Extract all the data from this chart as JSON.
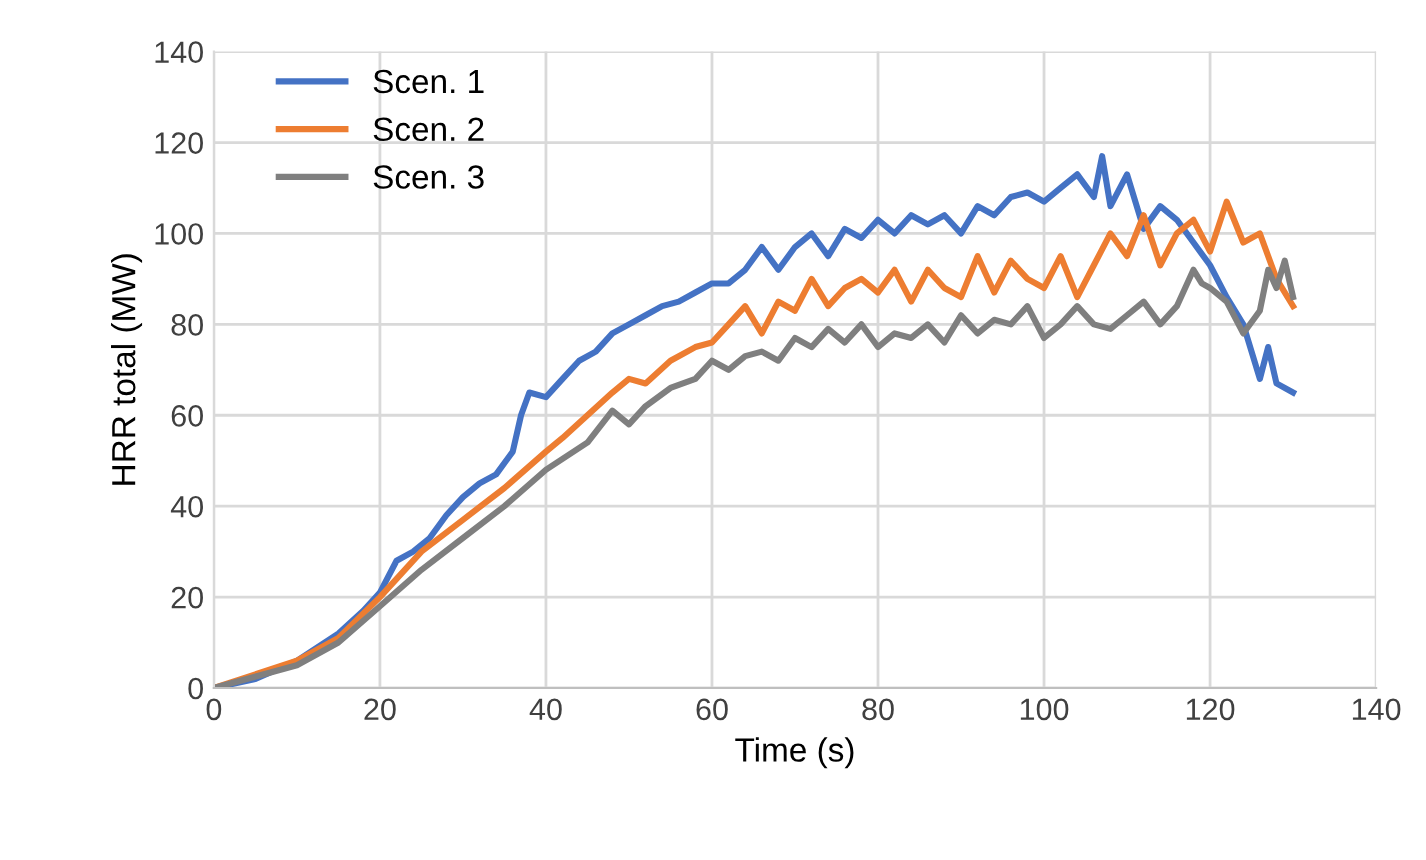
{
  "chart_data": {
    "type": "line",
    "xlabel": "Time (s)",
    "ylabel": "HRR total (MW)",
    "xlim": [
      0,
      140
    ],
    "xticks": [
      0,
      20,
      40,
      60,
      80,
      100,
      120,
      140
    ],
    "ylim": [
      0,
      140
    ],
    "yticks": [
      0,
      20,
      40,
      60,
      80,
      100,
      120,
      140
    ],
    "grid": true,
    "legend": "top left",
    "line_style": "solid",
    "series": [
      {
        "name": "Scen. 1",
        "color": "#4472c4",
        "x": [
          0,
          5,
          10,
          15,
          18,
          20,
          22,
          24,
          26,
          28,
          30,
          32,
          34,
          36,
          37,
          38,
          40,
          42,
          44,
          46,
          48,
          50,
          52,
          54,
          56,
          58,
          60,
          62,
          64,
          66,
          68,
          70,
          72,
          74,
          76,
          78,
          80,
          82,
          84,
          86,
          88,
          90,
          92,
          94,
          96,
          98,
          100,
          102,
          104,
          106,
          107,
          108,
          110,
          112,
          114,
          116,
          118,
          120,
          122,
          124,
          126,
          127,
          128,
          130
        ],
        "values": [
          0,
          2,
          6,
          12,
          17,
          21,
          28,
          30,
          33,
          38,
          42,
          45,
          47,
          52,
          60,
          65,
          64,
          68,
          72,
          74,
          78,
          80,
          82,
          84,
          85,
          87,
          89,
          89,
          92,
          97,
          92,
          97,
          100,
          95,
          101,
          99,
          103,
          100,
          104,
          102,
          104,
          100,
          106,
          104,
          108,
          109,
          107,
          110,
          113,
          108,
          117,
          106,
          113,
          101,
          106,
          103,
          98,
          93,
          86,
          80,
          68,
          75,
          67,
          65
        ]
      },
      {
        "name": "Scen. 2",
        "color": "#ed7d31",
        "x": [
          0,
          10,
          15,
          20,
          25,
          30,
          35,
          40,
          42,
          45,
          48,
          50,
          52,
          55,
          58,
          60,
          62,
          64,
          66,
          68,
          70,
          72,
          74,
          76,
          78,
          80,
          82,
          84,
          86,
          88,
          90,
          92,
          94,
          96,
          98,
          100,
          102,
          104,
          106,
          108,
          110,
          112,
          114,
          116,
          118,
          120,
          122,
          124,
          126,
          128,
          130
        ],
        "values": [
          0,
          6,
          11,
          20,
          30,
          37,
          44,
          52,
          55,
          60,
          65,
          68,
          67,
          72,
          75,
          76,
          80,
          84,
          78,
          85,
          83,
          90,
          84,
          88,
          90,
          87,
          92,
          85,
          92,
          88,
          86,
          95,
          87,
          94,
          90,
          88,
          95,
          86,
          93,
          100,
          95,
          104,
          93,
          100,
          103,
          96,
          107,
          98,
          100,
          90,
          84
        ]
      },
      {
        "name": "Scen. 3",
        "color": "#7f7f7f",
        "x": [
          0,
          10,
          15,
          20,
          25,
          30,
          35,
          40,
          45,
          48,
          50,
          52,
          55,
          58,
          60,
          62,
          64,
          66,
          68,
          70,
          72,
          74,
          76,
          78,
          80,
          82,
          84,
          86,
          88,
          90,
          92,
          94,
          96,
          98,
          100,
          102,
          104,
          106,
          108,
          110,
          112,
          114,
          116,
          118,
          119,
          120,
          122,
          124,
          126,
          127,
          128,
          129,
          130
        ],
        "values": [
          0,
          5,
          10,
          18,
          26,
          33,
          40,
          48,
          54,
          61,
          58,
          62,
          66,
          68,
          72,
          70,
          73,
          74,
          72,
          77,
          75,
          79,
          76,
          80,
          75,
          78,
          77,
          80,
          76,
          82,
          78,
          81,
          80,
          84,
          77,
          80,
          84,
          80,
          79,
          82,
          85,
          80,
          84,
          92,
          89,
          88,
          85,
          78,
          83,
          92,
          88,
          94,
          86
        ]
      }
    ]
  }
}
